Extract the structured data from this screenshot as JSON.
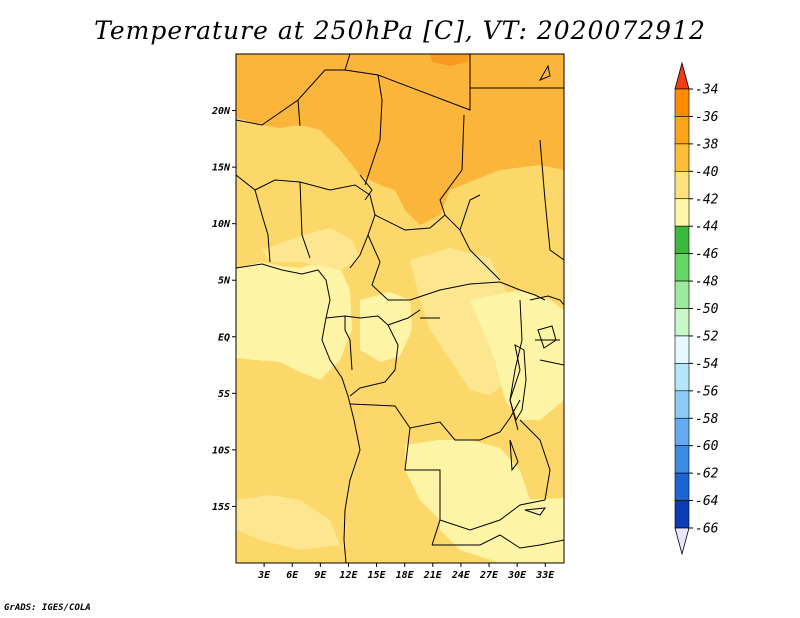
{
  "title": "Temperature at 250hPa [C], VT: 2020072912",
  "credit": "GrADS: IGES/COLA",
  "map": {
    "lat_labels": [
      {
        "lat": 20,
        "label": "20N"
      },
      {
        "lat": 15,
        "label": "15N"
      },
      {
        "lat": 10,
        "label": "10N"
      },
      {
        "lat": 5,
        "label": "5N"
      },
      {
        "lat": 0,
        "label": "EQ"
      },
      {
        "lat": -5,
        "label": "5S"
      },
      {
        "lat": -10,
        "label": "10S"
      },
      {
        "lat": -15,
        "label": "15S"
      }
    ],
    "lon_labels": [
      {
        "lon": 3,
        "label": "3E"
      },
      {
        "lon": 6,
        "label": "6E"
      },
      {
        "lon": 9,
        "label": "9E"
      },
      {
        "lon": 12,
        "label": "12E"
      },
      {
        "lon": 15,
        "label": "15E"
      },
      {
        "lon": 18,
        "label": "18E"
      },
      {
        "lon": 21,
        "label": "21E"
      },
      {
        "lon": 24,
        "label": "24E"
      },
      {
        "lon": 27,
        "label": "27E"
      },
      {
        "lon": 30,
        "label": "30E"
      },
      {
        "lon": 33,
        "label": "33E"
      }
    ],
    "lon_range": [
      0,
      35
    ],
    "lat_range": [
      -20,
      25
    ]
  },
  "colorbar": {
    "labels": [
      "-34",
      "-36",
      "-38",
      "-40",
      "-42",
      "-44",
      "-46",
      "-48",
      "-50",
      "-52",
      "-54",
      "-56",
      "-58",
      "-60",
      "-62",
      "-64",
      "-66"
    ],
    "colors": [
      "#ff5a00",
      "#ff8c00",
      "#fca41a",
      "#fcbe39",
      "#fde17a",
      "#fef6a8",
      "#3cb83c",
      "#66d666",
      "#9cea9c",
      "#c8f7c8",
      "#e4faff",
      "#b4e6f9",
      "#8ccbf7",
      "#64aaf2",
      "#3c8ce6",
      "#1e64d2",
      "#0a3cb4",
      "#0a1a6e"
    ],
    "top_color": "#f23c14",
    "bottom_color": "#e6e6ff"
  }
}
